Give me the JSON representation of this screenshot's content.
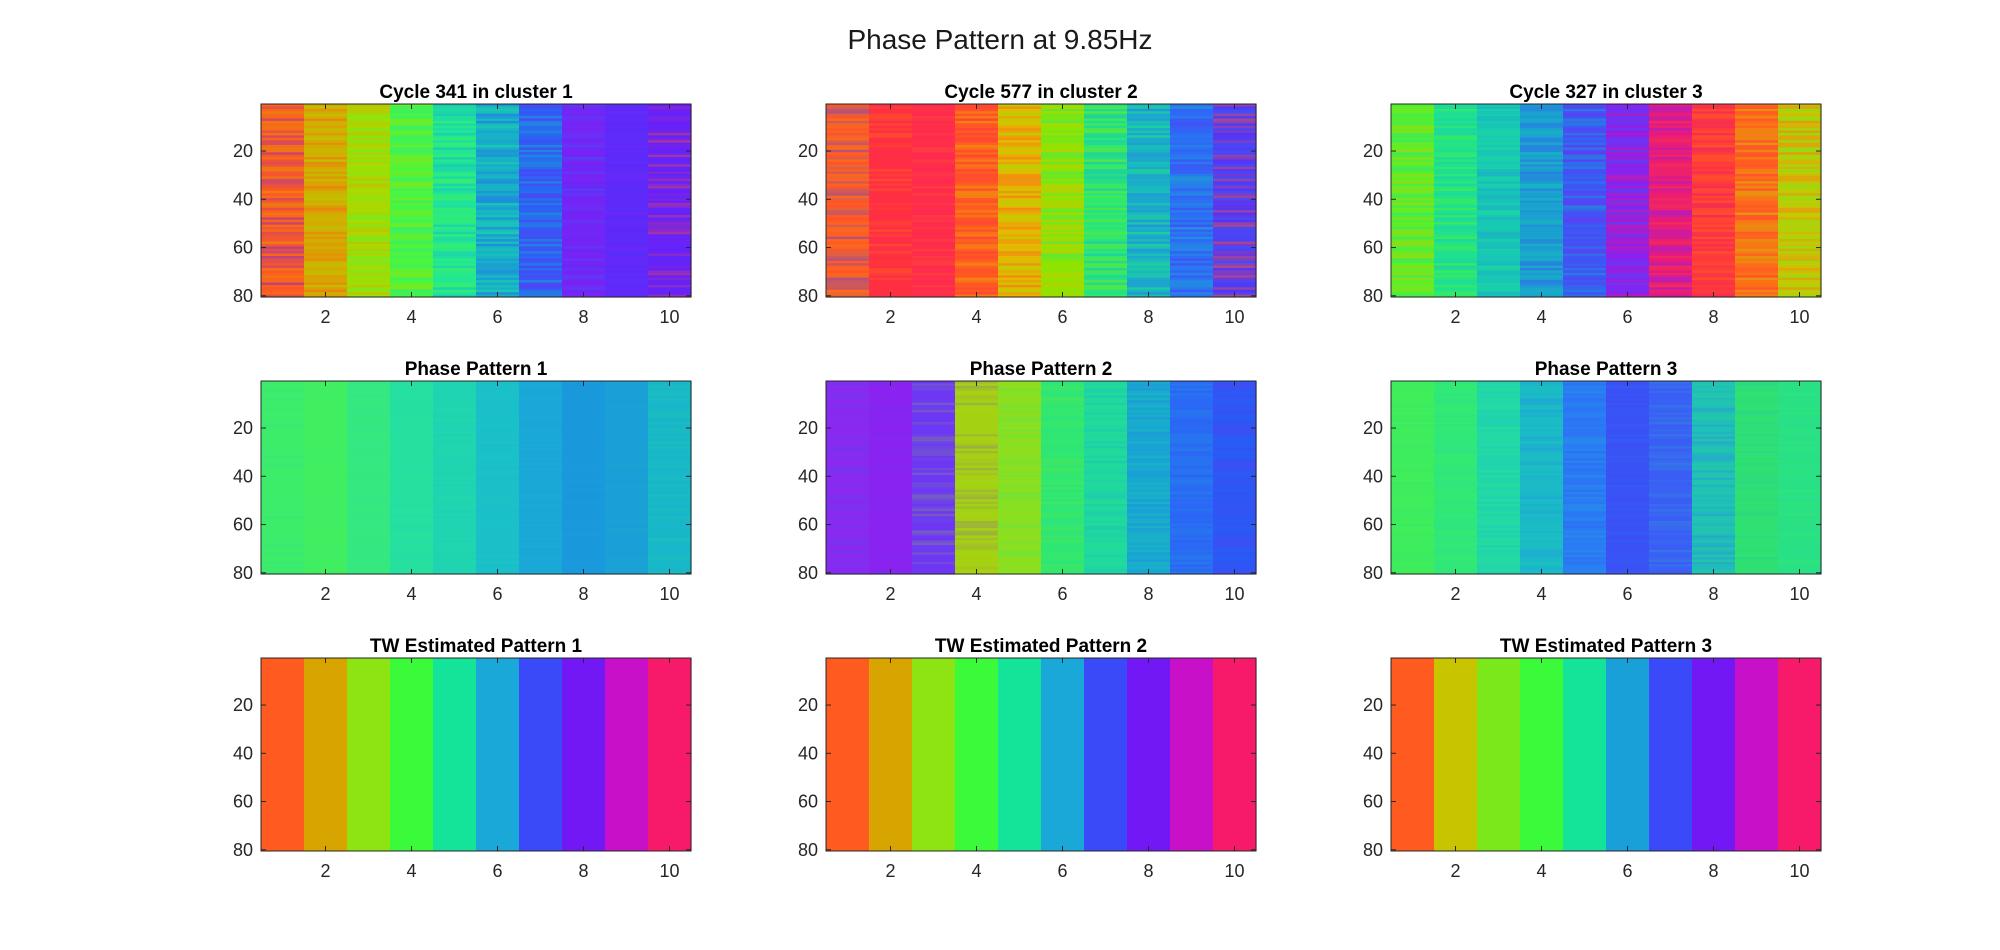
{
  "figure": {
    "title": "Phase Pattern at 9.85Hz"
  },
  "chart_data": [
    {
      "type": "heatmap",
      "title": "Cycle 341 in cluster 1",
      "x_ticks": [
        2,
        4,
        6,
        8,
        10
      ],
      "y_ticks": [
        20,
        40,
        60,
        80
      ],
      "xlim": [
        0.5,
        10.5
      ],
      "ylim": [
        0.5,
        80.5
      ],
      "y_reversed": true,
      "columns": 10,
      "rows": 80,
      "colormap": "hsv (cyclic phase)",
      "column_base_colors": [
        "#ff5a1f",
        "#d6a900",
        "#a6dc00",
        "#4df53c",
        "#1fe69a",
        "#16b0c7",
        "#2a62f5",
        "#7a22f5",
        "#5a2dfa",
        "#6a1ff8"
      ],
      "row_noise": "high"
    },
    {
      "type": "heatmap",
      "title": "Cycle 577 in cluster 2",
      "x_ticks": [
        2,
        4,
        6,
        8,
        10
      ],
      "y_ticks": [
        20,
        40,
        60,
        80
      ],
      "xlim": [
        0.5,
        10.5
      ],
      "ylim": [
        0.5,
        80.5
      ],
      "y_reversed": true,
      "columns": 10,
      "rows": 80,
      "colormap": "hsv (cyclic phase)",
      "column_base_colors": [
        "#ff6a1a",
        "#ff3040",
        "#ff2a50",
        "#ff5a20",
        "#e6b800",
        "#8be600",
        "#28e878",
        "#18b8c0",
        "#2a70f5",
        "#5a30f5"
      ],
      "row_noise": "high"
    },
    {
      "type": "heatmap",
      "title": "Cycle 327 in cluster 3",
      "x_ticks": [
        2,
        4,
        6,
        8,
        10
      ],
      "y_ticks": [
        20,
        40,
        60,
        80
      ],
      "xlim": [
        0.5,
        10.5
      ],
      "ylim": [
        0.5,
        80.5
      ],
      "y_reversed": true,
      "columns": 10,
      "rows": 80,
      "colormap": "hsv (cyclic phase)",
      "column_base_colors": [
        "#5af028",
        "#1fe38c",
        "#18c8b4",
        "#1aa0d0",
        "#3a58f5",
        "#8a20f0",
        "#e81a7a",
        "#ff3a3a",
        "#ff6a1a",
        "#c8c800"
      ],
      "row_noise": "high"
    },
    {
      "type": "heatmap",
      "title": "Phase Pattern 1",
      "x_ticks": [
        2,
        4,
        6,
        8,
        10
      ],
      "y_ticks": [
        20,
        40,
        60,
        80
      ],
      "xlim": [
        0.5,
        10.5
      ],
      "ylim": [
        0.5,
        80.5
      ],
      "y_reversed": true,
      "columns": 10,
      "rows": 80,
      "colormap": "hsv (cyclic phase)",
      "column_base_colors": [
        "#3ded6a",
        "#40ee60",
        "#35e880",
        "#25e0a0",
        "#1fd5b0",
        "#1ac0c8",
        "#1aa8d8",
        "#1a98dc",
        "#1aa0d6",
        "#18b8c8"
      ],
      "row_noise": "low"
    },
    {
      "type": "heatmap",
      "title": "Phase Pattern 2",
      "x_ticks": [
        2,
        4,
        6,
        8,
        10
      ],
      "y_ticks": [
        20,
        40,
        60,
        80
      ],
      "xlim": [
        0.5,
        10.5
      ],
      "ylim": [
        0.5,
        80.5
      ],
      "y_reversed": true,
      "columns": 10,
      "rows": 80,
      "colormap": "hsv (cyclic phase)",
      "column_base_colors": [
        "#8a2af0",
        "#8a22f0",
        "#6a3af5",
        "#a8d010",
        "#8ae020",
        "#30e870",
        "#1fd8a0",
        "#18a8d0",
        "#2a6af5",
        "#2a58f5"
      ],
      "row_noise": "medium"
    },
    {
      "type": "heatmap",
      "title": "Phase Pattern 3",
      "x_ticks": [
        2,
        4,
        6,
        8,
        10
      ],
      "y_ticks": [
        20,
        40,
        60,
        80
      ],
      "xlim": [
        0.5,
        10.5
      ],
      "ylim": [
        0.5,
        80.5
      ],
      "y_reversed": true,
      "columns": 10,
      "rows": 80,
      "colormap": "hsv (cyclic phase)",
      "column_base_colors": [
        "#40ee58",
        "#30e878",
        "#22d8a8",
        "#1ab8c8",
        "#2a7af5",
        "#3a50f5",
        "#3a60f5",
        "#1fc0b8",
        "#30e070",
        "#28e088"
      ],
      "row_noise": "medium"
    },
    {
      "type": "heatmap",
      "title": "TW Estimated Pattern 1",
      "x_ticks": [
        2,
        4,
        6,
        8,
        10
      ],
      "y_ticks": [
        20,
        40,
        60,
        80
      ],
      "xlim": [
        0.5,
        10.5
      ],
      "ylim": [
        0.5,
        80.5
      ],
      "y_reversed": true,
      "columns": 10,
      "rows": 80,
      "colormap": "hsv (cyclic phase)",
      "column_base_colors": [
        "#ff5a20",
        "#d8a400",
        "#8ee412",
        "#3afa3a",
        "#14e49a",
        "#1aa8d8",
        "#3a4af8",
        "#7218f5",
        "#c810c8",
        "#f81a6a"
      ],
      "row_noise": "none"
    },
    {
      "type": "heatmap",
      "title": "TW Estimated Pattern 2",
      "x_ticks": [
        2,
        4,
        6,
        8,
        10
      ],
      "y_ticks": [
        20,
        40,
        60,
        80
      ],
      "xlim": [
        0.5,
        10.5
      ],
      "ylim": [
        0.5,
        80.5
      ],
      "y_reversed": true,
      "columns": 10,
      "rows": 80,
      "colormap": "hsv (cyclic phase)",
      "column_base_colors": [
        "#ff5a20",
        "#d8a400",
        "#8ee412",
        "#3afa3a",
        "#14e49a",
        "#1aa8d8",
        "#3a4af8",
        "#7218f5",
        "#c810c8",
        "#f81a6a"
      ],
      "row_noise": "none"
    },
    {
      "type": "heatmap",
      "title": "TW Estimated Pattern 3",
      "x_ticks": [
        2,
        4,
        6,
        8,
        10
      ],
      "y_ticks": [
        20,
        40,
        60,
        80
      ],
      "xlim": [
        0.5,
        10.5
      ],
      "ylim": [
        0.5,
        80.5
      ],
      "y_reversed": true,
      "columns": 10,
      "rows": 80,
      "colormap": "hsv (cyclic phase)",
      "column_base_colors": [
        "#ff5a20",
        "#c8c400",
        "#7ae81a",
        "#3afa3a",
        "#14e49a",
        "#1aa0d8",
        "#3a4af8",
        "#7218f5",
        "#c810c8",
        "#f81a6a"
      ],
      "row_noise": "none"
    }
  ]
}
